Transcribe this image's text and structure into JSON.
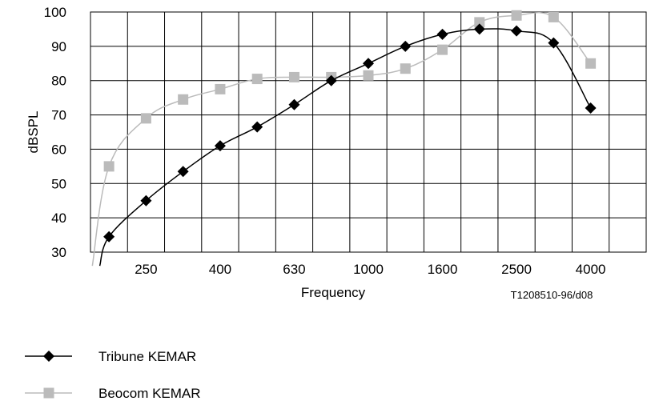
{
  "chart_data": {
    "type": "line",
    "xlabel": "Frequency",
    "ylabel": "dBSPL",
    "ylim": [
      30,
      100
    ],
    "yticks": [
      "30",
      "40",
      "50",
      "60",
      "70",
      "80",
      "90",
      "100"
    ],
    "xtick_labels": [
      "250",
      "400",
      "630",
      "1000",
      "1600",
      "2500",
      "4000"
    ],
    "grid": true,
    "reference": "T1208510-96/d08",
    "legend_position": "bottom-left",
    "series": [
      {
        "name": "Tribune KEMAR",
        "color": "#000000",
        "marker": "diamond",
        "lead_in": [
          [
            -0.25,
            26.0
          ]
        ],
        "x": [
          0,
          1,
          2,
          3,
          4,
          5,
          6,
          7,
          8,
          9,
          10,
          11,
          12,
          13,
          14
        ],
        "values": [
          34.5,
          45,
          53.5,
          61,
          66.5,
          73,
          80,
          85,
          90,
          93.5,
          95,
          94.5,
          91,
          72,
          null
        ]
      },
      {
        "name": "Beocom KEMAR",
        "color": "#bbbbbb",
        "marker": "square",
        "lead_in": [
          [
            -0.45,
            26.0
          ]
        ],
        "x": [
          0,
          1,
          2,
          3,
          4,
          5,
          6,
          7,
          8,
          9,
          10,
          11,
          12,
          13,
          14
        ],
        "values": [
          55,
          69,
          74.5,
          77.5,
          80.5,
          81,
          81,
          81.5,
          83.5,
          89,
          97,
          99,
          98.5,
          85,
          null
        ]
      }
    ]
  }
}
